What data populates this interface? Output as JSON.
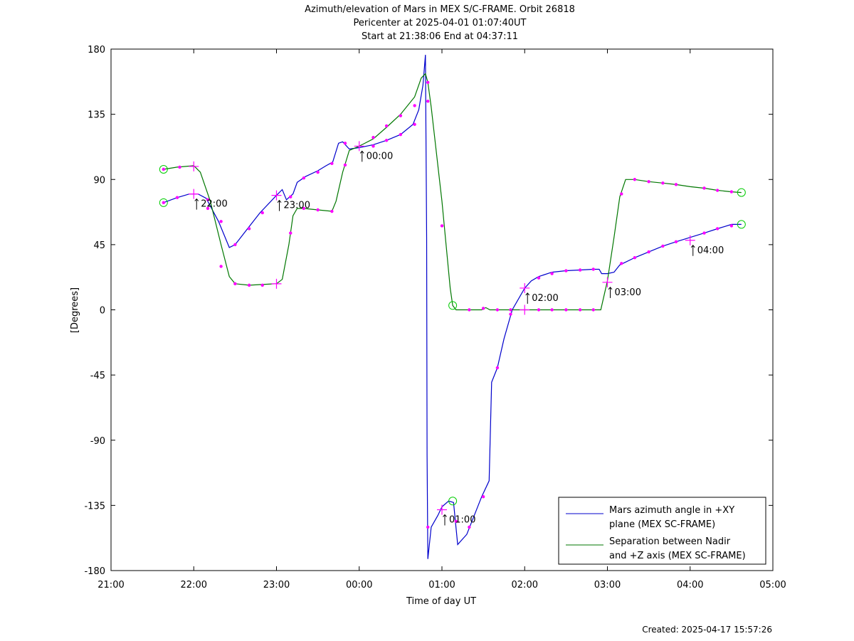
{
  "chart_data": {
    "type": "line",
    "title_lines": [
      "Azimuth/elevation of Mars in MEX S/C-FRAME.  Orbit 26818",
      "Pericenter at 2025-04-01 01:07:40UT",
      "Start at 21:38:06 End at 04:37:11"
    ],
    "xlabel": "Time of day UT",
    "ylabel": "[Degrees]",
    "xlim": [
      21,
      29
    ],
    "ylim": [
      -180,
      180
    ],
    "x_ticks": [
      21,
      22,
      23,
      24,
      25,
      26,
      27,
      28,
      29
    ],
    "x_tick_labels": [
      "21:00",
      "22:00",
      "23:00",
      "00:00",
      "01:00",
      "02:00",
      "03:00",
      "04:00",
      "05:00"
    ],
    "y_ticks": [
      180,
      135,
      90,
      45,
      0,
      -45,
      -90,
      -135,
      -180
    ],
    "y_tick_labels": [
      "180",
      "135",
      "90",
      "45",
      "0",
      "-45",
      "-90",
      "-135",
      "-180"
    ],
    "grid": false,
    "legend_position": "bottom-right",
    "series": [
      {
        "name": "Mars azimuth angle in +XY plane (MEX SC-FRAME)",
        "legend_lines": [
          "Mars azimuth angle in +XY",
          "plane (MEX SC-FRAME)"
        ],
        "color": "#0000cc",
        "points": [
          [
            21.635,
            74
          ],
          [
            21.8,
            77.5
          ],
          [
            21.95,
            80
          ],
          [
            22.05,
            80
          ],
          [
            22.15,
            77
          ],
          [
            22.3,
            61
          ],
          [
            22.43,
            43
          ],
          [
            22.5,
            45
          ],
          [
            22.65,
            56
          ],
          [
            22.8,
            67
          ],
          [
            23.0,
            79
          ],
          [
            23.07,
            83
          ],
          [
            23.12,
            76
          ],
          [
            23.2,
            80
          ],
          [
            23.25,
            88
          ],
          [
            23.35,
            92
          ],
          [
            23.5,
            96
          ],
          [
            23.6,
            99.5
          ],
          [
            23.68,
            102
          ],
          [
            23.75,
            115
          ],
          [
            23.8,
            116
          ],
          [
            23.88,
            111
          ],
          [
            24.0,
            112
          ],
          [
            24.17,
            114
          ],
          [
            24.33,
            117
          ],
          [
            24.5,
            121
          ],
          [
            24.65,
            128
          ],
          [
            24.72,
            138
          ],
          [
            24.77,
            155
          ],
          [
            24.8,
            176
          ],
          [
            24.815,
            50
          ],
          [
            24.82,
            -100
          ],
          [
            24.83,
            -172
          ],
          [
            24.87,
            -150
          ],
          [
            24.95,
            -142
          ],
          [
            25.0,
            -136
          ],
          [
            25.08,
            -132
          ],
          [
            25.14,
            -133
          ],
          [
            25.19,
            -162
          ],
          [
            25.3,
            -155
          ],
          [
            25.48,
            -129
          ],
          [
            25.57,
            -118
          ],
          [
            25.6,
            -50
          ],
          [
            25.67,
            -40
          ],
          [
            25.75,
            -20
          ],
          [
            25.85,
            0
          ],
          [
            26.0,
            15
          ],
          [
            26.08,
            20
          ],
          [
            26.17,
            23
          ],
          [
            26.33,
            26
          ],
          [
            26.5,
            27
          ],
          [
            26.67,
            27.5
          ],
          [
            26.83,
            28
          ],
          [
            26.9,
            28
          ],
          [
            26.93,
            25
          ],
          [
            27.0,
            25
          ],
          [
            27.08,
            26
          ],
          [
            27.15,
            31
          ],
          [
            27.33,
            36
          ],
          [
            27.5,
            40
          ],
          [
            27.67,
            44
          ],
          [
            27.83,
            47
          ],
          [
            28.0,
            50
          ],
          [
            28.17,
            53
          ],
          [
            28.33,
            56
          ],
          [
            28.5,
            59
          ],
          [
            28.62,
            59
          ]
        ]
      },
      {
        "name": "Separation between Nadir and +Z axis (MEX SC-FRAME)",
        "legend_lines": [
          "Separation between Nadir",
          "and +Z axis (MEX SC-FRAME)"
        ],
        "color": "#007700",
        "points": [
          [
            21.635,
            97
          ],
          [
            21.8,
            98.5
          ],
          [
            22.0,
            99.5
          ],
          [
            22.08,
            95
          ],
          [
            22.2,
            75
          ],
          [
            22.33,
            45
          ],
          [
            22.43,
            23
          ],
          [
            22.5,
            18
          ],
          [
            22.67,
            17
          ],
          [
            23.0,
            18
          ],
          [
            23.07,
            21
          ],
          [
            23.15,
            45
          ],
          [
            23.2,
            65
          ],
          [
            23.25,
            70
          ],
          [
            23.33,
            70
          ],
          [
            23.5,
            69
          ],
          [
            23.67,
            68
          ],
          [
            23.72,
            75
          ],
          [
            23.8,
            95
          ],
          [
            23.88,
            110
          ],
          [
            24.0,
            113
          ],
          [
            24.17,
            118
          ],
          [
            24.33,
            126
          ],
          [
            24.5,
            135
          ],
          [
            24.67,
            147
          ],
          [
            24.75,
            160
          ],
          [
            24.8,
            163
          ],
          [
            24.83,
            157
          ],
          [
            24.87,
            140
          ],
          [
            24.92,
            115
          ],
          [
            24.97,
            90
          ],
          [
            25.0,
            75
          ],
          [
            25.05,
            45
          ],
          [
            25.1,
            15
          ],
          [
            25.13,
            3
          ],
          [
            25.17,
            0
          ],
          [
            25.33,
            0
          ],
          [
            25.48,
            0
          ],
          [
            25.53,
            1.5
          ],
          [
            25.58,
            0
          ],
          [
            25.67,
            0
          ],
          [
            26.0,
            0
          ],
          [
            26.5,
            0
          ],
          [
            26.92,
            0
          ],
          [
            27.0,
            20
          ],
          [
            27.08,
            50
          ],
          [
            27.15,
            78
          ],
          [
            27.22,
            90
          ],
          [
            27.33,
            90
          ],
          [
            27.5,
            88.5
          ],
          [
            27.67,
            87.5
          ],
          [
            27.83,
            86.5
          ],
          [
            28.0,
            85
          ],
          [
            28.17,
            84
          ],
          [
            28.33,
            82.5
          ],
          [
            28.5,
            81.5
          ],
          [
            28.62,
            81
          ]
        ]
      }
    ],
    "series_0_markers": [
      [
        21.635,
        74
      ],
      [
        21.8,
        77.5
      ],
      [
        22.17,
        76
      ],
      [
        22.33,
        61
      ],
      [
        22.5,
        45
      ],
      [
        22.67,
        56
      ],
      [
        22.83,
        67
      ],
      [
        23.17,
        78
      ],
      [
        23.33,
        91
      ],
      [
        23.5,
        95
      ],
      [
        23.67,
        101
      ],
      [
        23.83,
        115
      ],
      [
        24.17,
        113
      ],
      [
        24.33,
        117
      ],
      [
        24.5,
        121
      ],
      [
        24.67,
        128
      ],
      [
        24.83,
        144
      ],
      [
        24.83,
        -150
      ],
      [
        25.17,
        -146
      ],
      [
        25.33,
        -150
      ],
      [
        25.5,
        -129
      ],
      [
        25.67,
        -40
      ],
      [
        25.83,
        -3
      ],
      [
        26.17,
        22
      ],
      [
        26.33,
        25
      ],
      [
        26.5,
        27
      ],
      [
        26.67,
        27.5
      ],
      [
        26.83,
        28
      ],
      [
        27.17,
        32
      ],
      [
        27.33,
        36
      ],
      [
        27.5,
        40
      ],
      [
        27.67,
        44
      ],
      [
        27.83,
        47
      ],
      [
        28.17,
        53
      ],
      [
        28.33,
        56
      ],
      [
        28.5,
        58
      ]
    ],
    "series_1_markers": [
      [
        21.635,
        97
      ],
      [
        21.83,
        98.5
      ],
      [
        22.17,
        70
      ],
      [
        22.33,
        30
      ],
      [
        22.5,
        18
      ],
      [
        22.67,
        17
      ],
      [
        22.83,
        17
      ],
      [
        23.17,
        53
      ],
      [
        23.33,
        70
      ],
      [
        23.5,
        69
      ],
      [
        23.67,
        68
      ],
      [
        23.83,
        100
      ],
      [
        24.17,
        119
      ],
      [
        24.33,
        127
      ],
      [
        24.5,
        134
      ],
      [
        24.67,
        141
      ],
      [
        24.83,
        157
      ],
      [
        25.0,
        58
      ],
      [
        25.33,
        0
      ],
      [
        25.5,
        1
      ],
      [
        25.67,
        0
      ],
      [
        25.83,
        0
      ],
      [
        26.17,
        0
      ],
      [
        26.33,
        0
      ],
      [
        26.5,
        0
      ],
      [
        26.67,
        0
      ],
      [
        26.83,
        0
      ],
      [
        27.17,
        80
      ],
      [
        27.33,
        90
      ],
      [
        27.5,
        88.5
      ],
      [
        27.67,
        87.5
      ],
      [
        27.83,
        86.5
      ],
      [
        28.17,
        84
      ],
      [
        28.33,
        82.5
      ],
      [
        28.5,
        81.5
      ]
    ],
    "hour_crosses": [
      [
        22,
        80
      ],
      [
        23,
        79
      ],
      [
        24,
        113
      ],
      [
        25,
        -138
      ],
      [
        26,
        15
      ],
      [
        27,
        19
      ],
      [
        28,
        48
      ],
      [
        22,
        99
      ],
      [
        23,
        18
      ],
      [
        26,
        0
      ]
    ],
    "endpoint_circles": [
      [
        21.635,
        74
      ],
      [
        21.635,
        97
      ],
      [
        28.62,
        59
      ],
      [
        28.62,
        81
      ],
      [
        25.13,
        3
      ],
      [
        25.13,
        -132
      ]
    ],
    "hour_annotations": [
      {
        "label": "22:00",
        "x": 22,
        "y": 80
      },
      {
        "label": "23:00",
        "x": 23,
        "y": 79
      },
      {
        "label": "00:00",
        "x": 24,
        "y": 113
      },
      {
        "label": "01:00",
        "x": 25,
        "y": -138
      },
      {
        "label": "02:00",
        "x": 26,
        "y": 15
      },
      {
        "label": "03:00",
        "x": 27,
        "y": 19
      },
      {
        "label": "04:00",
        "x": 28,
        "y": 48
      }
    ],
    "marker_color": "#ff00ff",
    "circle_color": "#00cc00",
    "axis_color": "#000000"
  },
  "footer": {
    "created": "Created: 2025-04-17 15:57:26"
  }
}
